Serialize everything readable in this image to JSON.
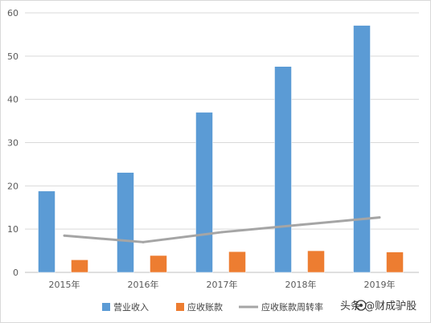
{
  "chart_data": {
    "type": "bar",
    "categories": [
      "2015年",
      "2016年",
      "2017年",
      "2018年",
      "2019年"
    ],
    "series": [
      {
        "name": "营业收入",
        "type": "bar",
        "values": [
          18.8,
          23.1,
          37.0,
          47.6,
          57.1
        ],
        "color": "#5b9bd5"
      },
      {
        "name": "应收账款",
        "type": "bar",
        "values": [
          2.9,
          3.9,
          4.8,
          5.0,
          4.7
        ],
        "color": "#ed7d31"
      },
      {
        "name": "应收账款周转率",
        "type": "line",
        "values": [
          8.5,
          7.0,
          9.3,
          11.0,
          12.7
        ],
        "color": "#a5a5a5"
      }
    ],
    "ylim": [
      0,
      60
    ],
    "yticks": [
      0,
      10,
      20,
      30,
      40,
      50,
      60
    ],
    "grid": true,
    "legend": "bottom"
  },
  "watermark": "头条 @财成驴股"
}
